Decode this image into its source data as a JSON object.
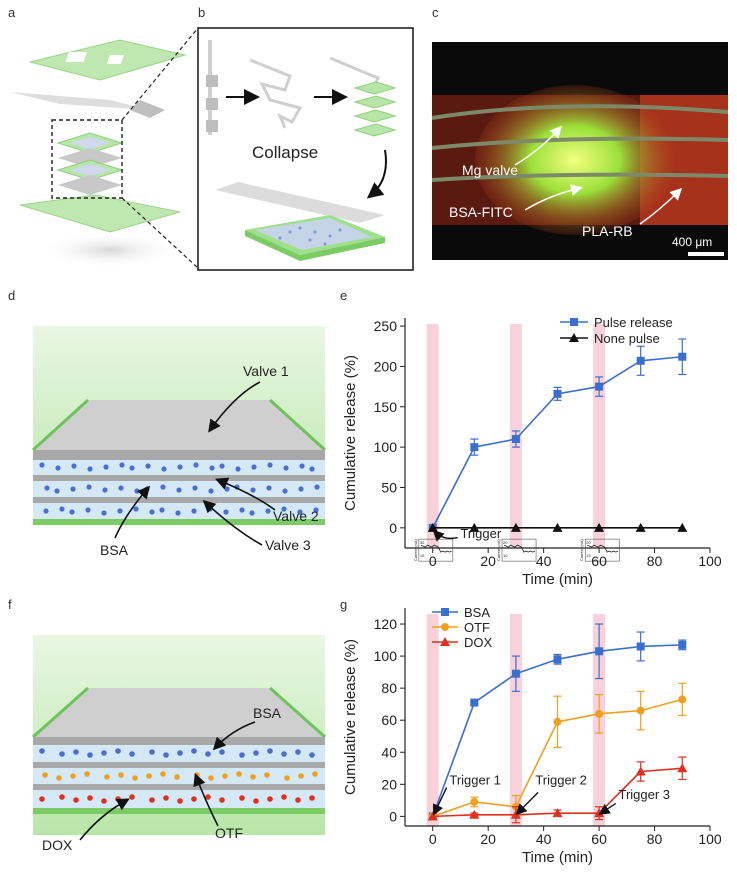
{
  "panel_labels": {
    "a": "a",
    "b": "b",
    "c": "c",
    "d": "d",
    "e": "e",
    "f": "f",
    "g": "g"
  },
  "panel_b": {
    "collapse_label": "Collapse"
  },
  "panel_c": {
    "annotations": [
      "Mg valve",
      "BSA-FITC",
      "PLA-RB"
    ],
    "scale_bar": "400 μm"
  },
  "panel_d": {
    "labels": [
      "Valve 1",
      "Valve 2",
      "Valve 3",
      "BSA"
    ]
  },
  "panel_f": {
    "labels": [
      "BSA",
      "OTF",
      "DOX"
    ]
  },
  "colors": {
    "blue_series": "#3a6fd0",
    "black_series": "#111111",
    "orange_series": "#f0a020",
    "red_series": "#e03020",
    "trigger_band": "#f7c6d2",
    "green_film": "#b8e6a8",
    "gray_valve": "#c8c8c8",
    "blue_layer": "#d4e8f6"
  },
  "chart_data": [
    {
      "id": "e",
      "type": "line",
      "xlabel": "Time (min)",
      "ylabel": "Cumulative release (%)",
      "xlim": [
        -10,
        100
      ],
      "ylim": [
        -25,
        260
      ],
      "xticks": [
        0,
        20,
        40,
        60,
        80,
        100
      ],
      "yticks": [
        0,
        50,
        100,
        150,
        200,
        250
      ],
      "trigger_bands": [
        0,
        30,
        60
      ],
      "annotation": "Trigger",
      "inset_axis_labels": [
        "Current (nA)",
        "Current (nA)",
        "Current (nA)"
      ],
      "inset_tick_labels": [
        "30",
        "15",
        "20",
        "10",
        "20",
        "15"
      ],
      "legend": [
        "Pulse release",
        "None pulse"
      ],
      "series": [
        {
          "name": "Pulse release",
          "color": "#3a6fd0",
          "marker": "square",
          "x": [
            0,
            15,
            30,
            45,
            60,
            75,
            90
          ],
          "y": [
            0,
            100,
            110,
            166,
            175,
            207,
            212
          ],
          "err": [
            0,
            10,
            10,
            8,
            12,
            18,
            22
          ]
        },
        {
          "name": "None pulse",
          "color": "#111111",
          "marker": "triangle",
          "x": [
            0,
            15,
            30,
            45,
            60,
            75,
            90
          ],
          "y": [
            0,
            0,
            0,
            0,
            0,
            0,
            0
          ],
          "err": [
            0,
            0,
            0,
            0,
            0,
            0,
            0
          ]
        }
      ]
    },
    {
      "id": "g",
      "type": "line",
      "xlabel": "Time (min)",
      "ylabel": "Cumulative release (%)",
      "xlim": [
        -10,
        100
      ],
      "ylim": [
        -6,
        130
      ],
      "xticks": [
        0,
        20,
        40,
        60,
        80,
        100
      ],
      "yticks": [
        0,
        20,
        40,
        60,
        80,
        100,
        120
      ],
      "trigger_bands": [
        0,
        30,
        60
      ],
      "triggers": [
        "Trigger 1",
        "Trigger 2",
        "Trigger 3"
      ],
      "legend": [
        "BSA",
        "OTF",
        "DOX"
      ],
      "series": [
        {
          "name": "BSA",
          "color": "#3a6fd0",
          "marker": "square",
          "x": [
            0,
            15,
            30,
            45,
            60,
            75,
            90
          ],
          "y": [
            0,
            71,
            89,
            98,
            103,
            106,
            107
          ],
          "err": [
            0,
            1,
            11,
            3,
            17,
            9,
            3
          ]
        },
        {
          "name": "OTF",
          "color": "#f0a020",
          "marker": "circle",
          "x": [
            0,
            15,
            30,
            45,
            60,
            75,
            90
          ],
          "y": [
            0,
            9,
            6,
            59,
            64,
            66,
            73
          ],
          "err": [
            0,
            3,
            7,
            16,
            12,
            12,
            10
          ]
        },
        {
          "name": "DOX",
          "color": "#e03020",
          "marker": "triangle",
          "x": [
            0,
            15,
            30,
            45,
            60,
            75,
            90
          ],
          "y": [
            0,
            1,
            1,
            2,
            2,
            28,
            30
          ],
          "err": [
            0,
            1,
            5,
            2,
            4,
            6,
            7
          ]
        }
      ]
    }
  ]
}
